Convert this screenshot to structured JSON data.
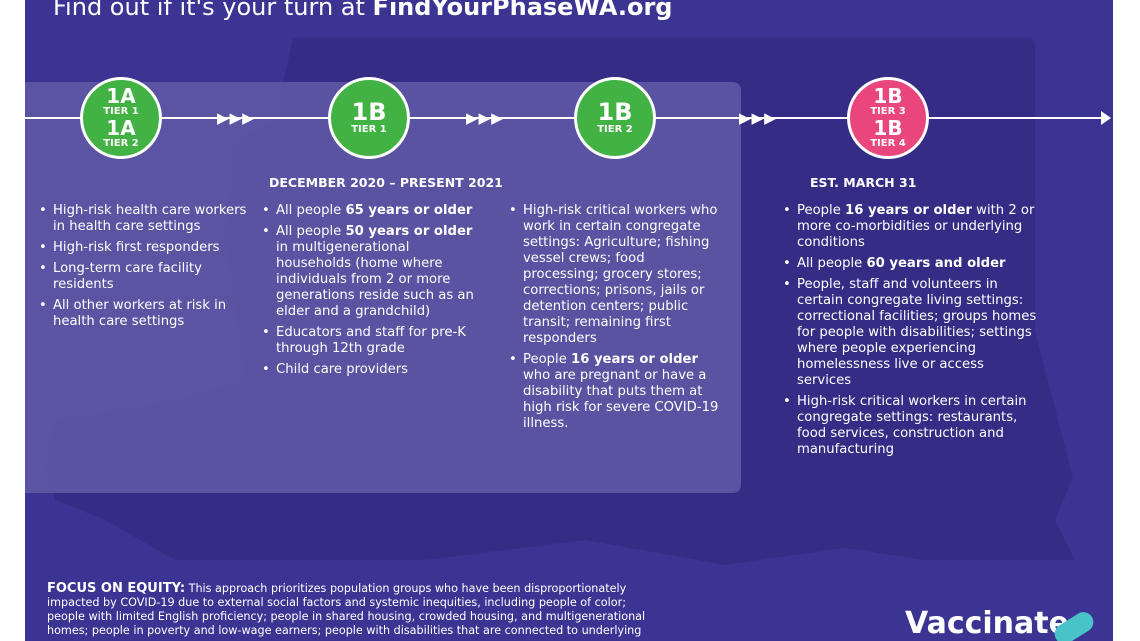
{
  "headline": {
    "prefix": "Find out if it's your turn at ",
    "url": "FindYourPhaseWA.org"
  },
  "phases": [
    {
      "lines": [
        {
          "text": "1A",
          "size": "big"
        },
        {
          "text": "TIER 1",
          "size": "small"
        },
        {
          "text": "1A",
          "size": "big"
        },
        {
          "text": "TIER 2",
          "size": "small"
        }
      ],
      "color": "#43b244"
    },
    {
      "lines": [
        {
          "text": "1B",
          "size": "big"
        },
        {
          "text": "TIER 1",
          "size": "small"
        }
      ],
      "color": "#43b244"
    },
    {
      "lines": [
        {
          "text": "1B",
          "size": "big"
        },
        {
          "text": "TIER 2",
          "size": "small"
        }
      ],
      "color": "#43b244"
    },
    {
      "lines": [
        {
          "text": "1B",
          "size": "big"
        },
        {
          "text": "TIER 3",
          "size": "small"
        },
        {
          "text": "1B",
          "size": "big"
        },
        {
          "text": "TIER 4",
          "size": "small"
        }
      ],
      "color": "#e9467e"
    }
  ],
  "arrows": "▶▶▶",
  "dates": {
    "current": "DECEMBER 2020 – PRESENT 2021",
    "upcoming": "EST. MARCH 31"
  },
  "columns": [
    [
      [
        {
          "t": "High-risk health care workers in health care settings"
        }
      ],
      [
        {
          "t": "High-risk first responders"
        }
      ],
      [
        {
          "t": "Long-term care facility residents"
        }
      ],
      [
        {
          "t": "All other workers at risk in health care settings"
        }
      ]
    ],
    [
      [
        {
          "t": "All people "
        },
        {
          "t": "65 years or older",
          "b": true
        }
      ],
      [
        {
          "t": "All people "
        },
        {
          "t": "50 years or older",
          "b": true
        },
        {
          "t": " in multigenerational households (home where individuals from 2 or more generations reside such as an elder and a grandchild)"
        }
      ],
      [
        {
          "t": "Educators and staff for pre-K through 12th grade"
        }
      ],
      [
        {
          "t": "Child care providers"
        }
      ]
    ],
    [
      [
        {
          "t": "High-risk critical workers who work in certain congregate settings: Agriculture; fishing vessel crews; food processing; grocery stores; corrections; prisons, jails or detention centers; public transit; remaining first responders"
        }
      ],
      [
        {
          "t": "People "
        },
        {
          "t": "16 years or older",
          "b": true
        },
        {
          "t": " who are pregnant or have a disability that puts them at high risk for severe COVID-19 illness."
        }
      ]
    ],
    [
      [
        {
          "t": "People "
        },
        {
          "t": "16 years or older",
          "b": true
        },
        {
          "t": " with 2 or more co-morbidities or underlying conditions"
        }
      ],
      [
        {
          "t": "All people "
        },
        {
          "t": "60 years and older",
          "b": true
        }
      ],
      [
        {
          "t": "People, staff and volunteers in certain congregate living settings: correctional facilities; groups homes for people with disabilities; settings where people experiencing homelessness live or access services"
        }
      ],
      [
        {
          "t": "High-risk critical workers in certain congregate settings: restaurants, food services, construction and manufacturing"
        }
      ]
    ]
  ],
  "equity": {
    "label": "FOCUS ON EQUITY:",
    "text": " This approach prioritizes population groups who have been disproportionately impacted by COVID-19 due to external social factors and systemic inequities, including people of color; people with limited English proficiency; people in shared housing, crowded housing, and multigenerational homes; people in poverty and low-wage earners; people with disabilities that are connected to underlying"
  },
  "brand": {
    "text": "Vaccinate"
  },
  "colors": {
    "background": "#3c3493",
    "panel": "#5f5aa6",
    "green": "#43b244",
    "pink": "#e9467e",
    "bandaid": "#49c3c8"
  }
}
